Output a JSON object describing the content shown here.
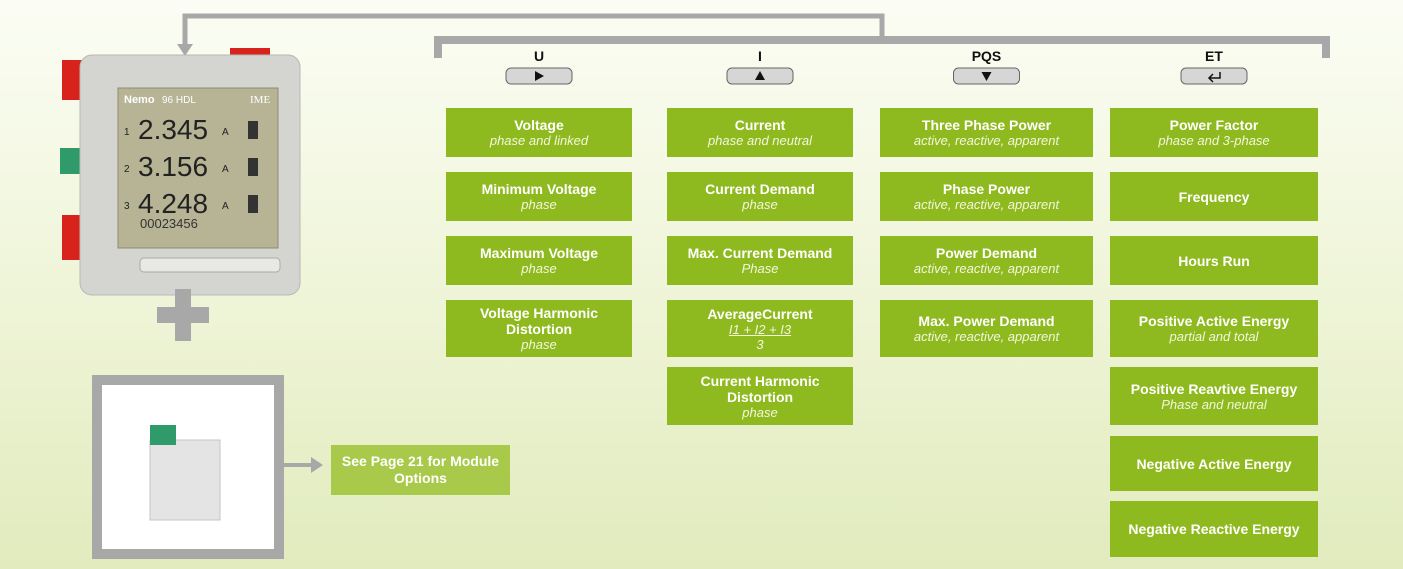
{
  "device": {
    "brand": "Nemo",
    "model": "96 HDL",
    "maker": "IME",
    "rows": [
      "1",
      "2",
      "3"
    ],
    "readings": [
      "2.345",
      "3.156",
      "4.248"
    ],
    "unit": "A",
    "counter": "00023456"
  },
  "columns": [
    {
      "header": "U",
      "boxes": [
        {
          "title": "Voltage",
          "subtitle": "phase and linked"
        },
        {
          "title": "Minimum Voltage",
          "subtitle": "phase"
        },
        {
          "title": "Maximum Voltage",
          "subtitle": "phase"
        },
        {
          "title": "Voltage Harmonic Distortion",
          "subtitle": "phase"
        }
      ]
    },
    {
      "header": "I",
      "boxes": [
        {
          "title": "Current",
          "subtitle": "phase and neutral"
        },
        {
          "title": "Current Demand",
          "subtitle": "phase"
        },
        {
          "title": "Max. Current Demand",
          "subtitle": "Phase"
        },
        {
          "title": "AverageCurrent",
          "subtitle": "I1 + I2 + I3",
          "denominator": "3"
        },
        {
          "title": "Current Harmonic Distortion",
          "subtitle": "phase"
        }
      ]
    },
    {
      "header": "PQS",
      "boxes": [
        {
          "title": "Three Phase Power",
          "subtitle": "active, reactive, apparent"
        },
        {
          "title": "Phase Power",
          "subtitle": "active, reactive, apparent"
        },
        {
          "title": "Power Demand",
          "subtitle": "active, reactive, apparent"
        },
        {
          "title": "Max. Power Demand",
          "subtitle": "active, reactive, apparent"
        }
      ]
    },
    {
      "header": "ET",
      "boxes": [
        {
          "title": "Power Factor",
          "subtitle": "phase and 3-phase"
        },
        {
          "title": "Frequency"
        },
        {
          "title": "Hours Run"
        },
        {
          "title": "Positive Active Energy",
          "subtitle": "partial and total"
        },
        {
          "title": "Positive Reavtive Energy",
          "subtitle": "Phase and neutral"
        },
        {
          "title": "Negative Active Energy"
        },
        {
          "title": "Negative Reactive Energy"
        }
      ]
    }
  ],
  "module_note": "See Page 21 for Module Options"
}
